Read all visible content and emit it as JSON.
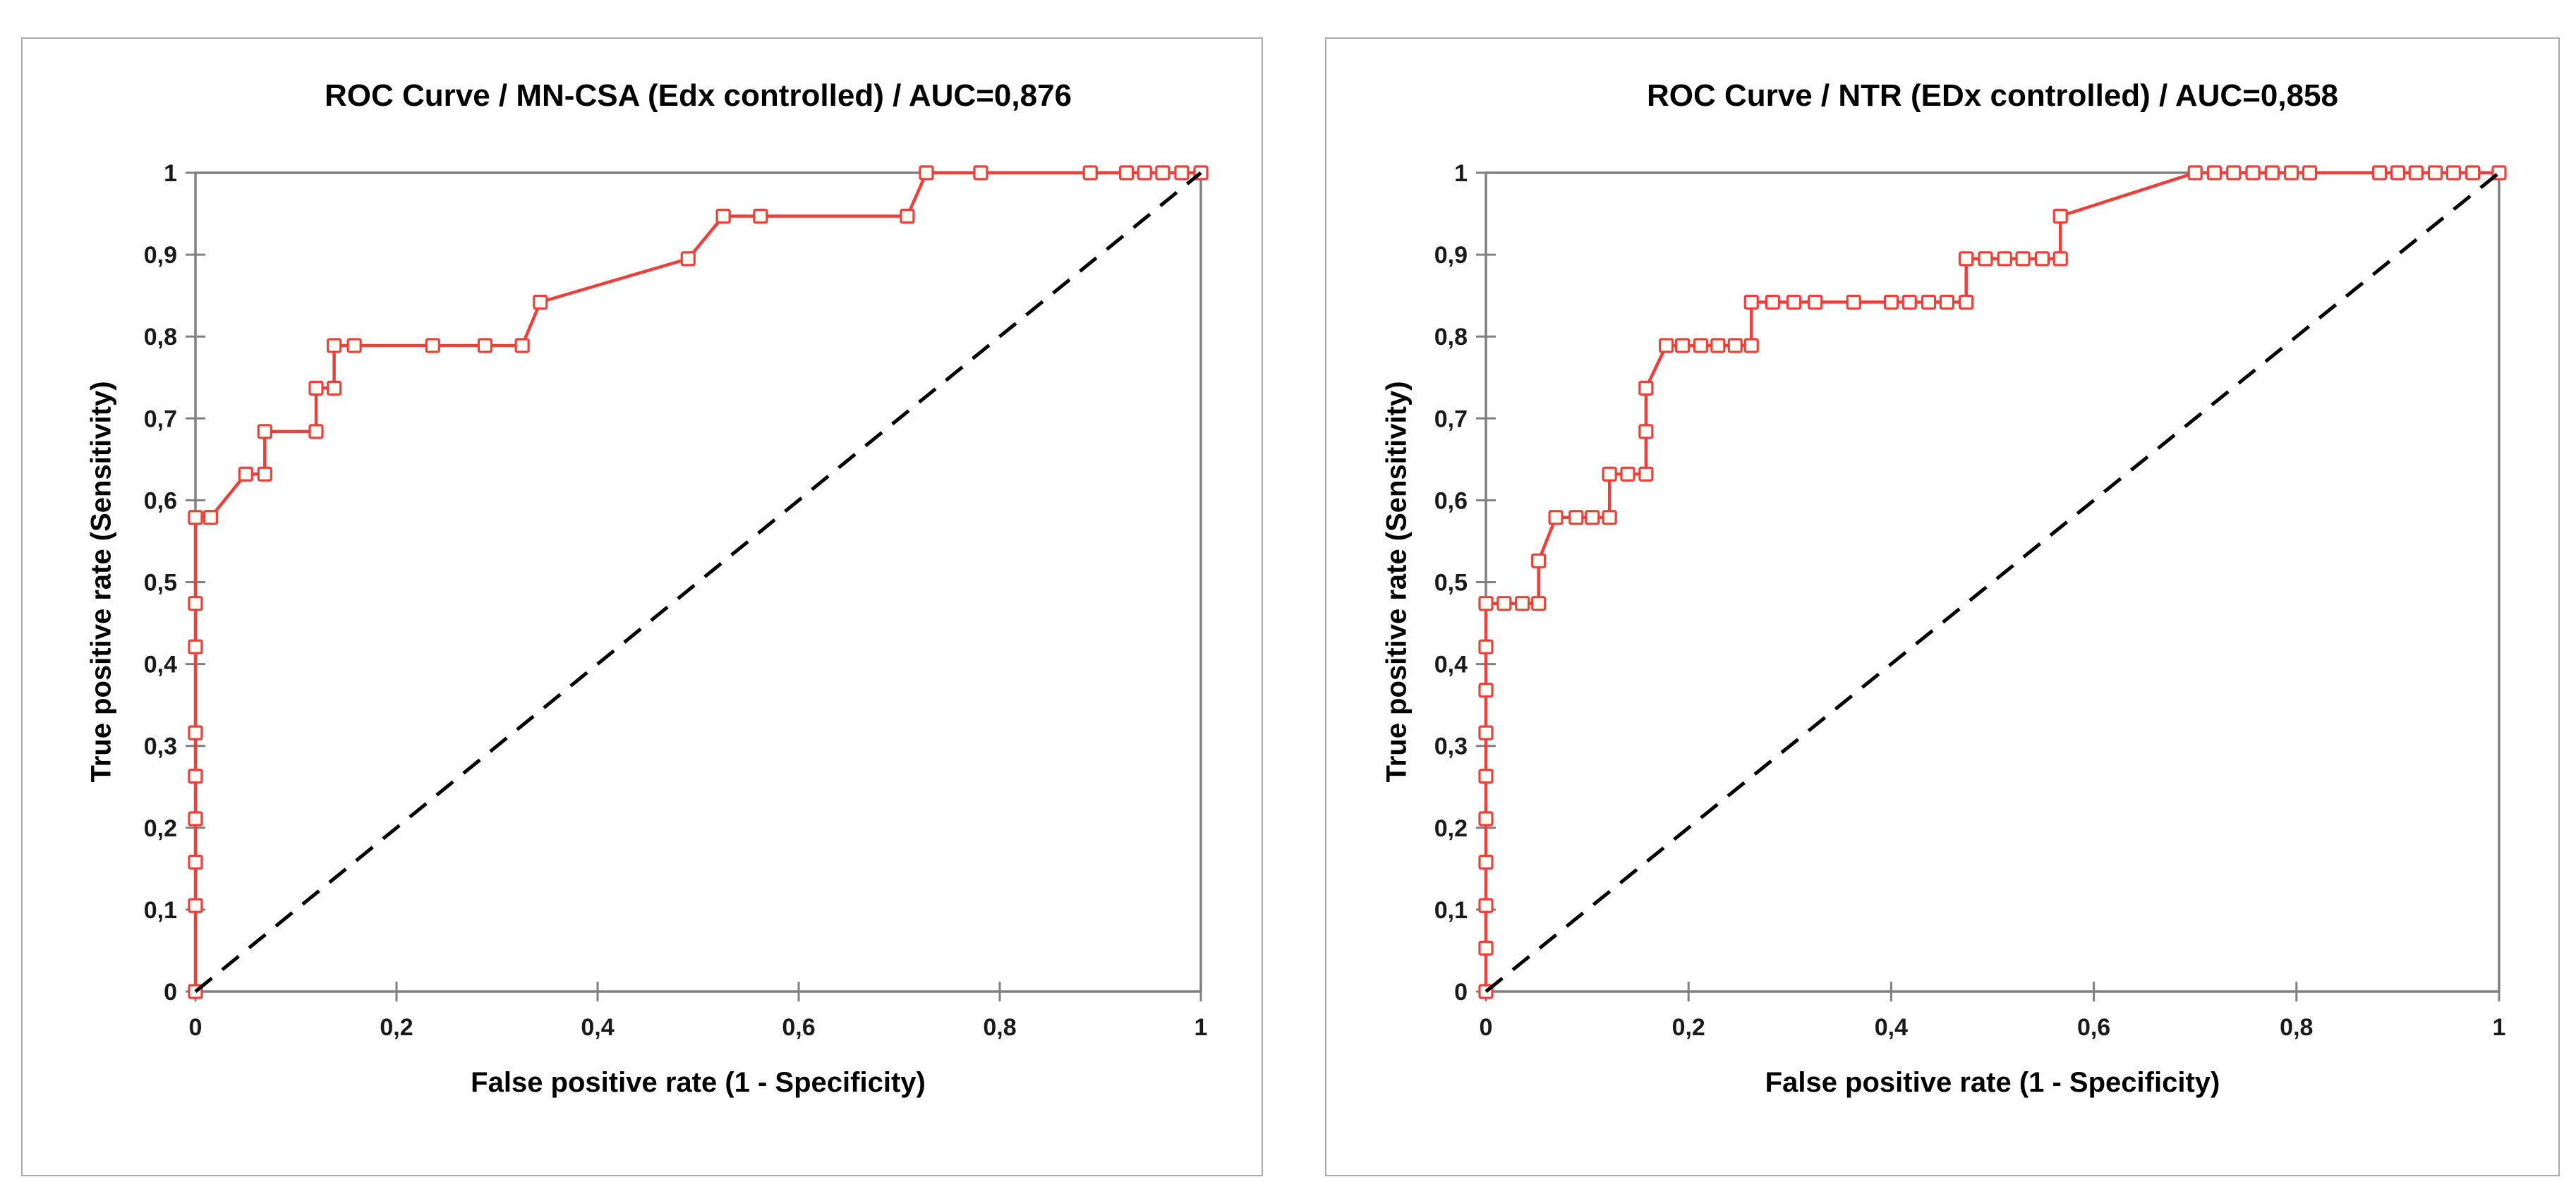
{
  "figure": {
    "background": "#ffffff",
    "panel_border_color": "#ababab",
    "axis_color": "#808080",
    "tick_text_color": "#1a1a1a",
    "title_text_color": "#000000",
    "curve_color": "#e9413c",
    "marker_fill": "#fffdf5",
    "diagonal_color": "#000000"
  },
  "chart_data": [
    {
      "type": "line",
      "title": "ROC Curve / MN-CSA (Edx controlled) / AUC=0,876",
      "auc": 0.876,
      "xlabel": "False positive rate (1 - Specificity)",
      "ylabel": "True positive rate (Sensitivity)",
      "xlim": [
        0,
        1
      ],
      "ylim": [
        0,
        1
      ],
      "x_tick_labels": [
        "0",
        "0,2",
        "0,4",
        "0,6",
        "0,8",
        "1"
      ],
      "y_tick_labels": [
        "0",
        "0,1",
        "0,2",
        "0,3",
        "0,4",
        "0,5",
        "0,6",
        "0,7",
        "0,8",
        "0,9",
        "1"
      ],
      "grid": false,
      "legend": false,
      "series": [
        {
          "name": "ROC curve (MN-CSA)",
          "style": "solid-square-markers",
          "color": "#e9413c",
          "points": [
            [
              0,
              0
            ],
            [
              0,
              0.105
            ],
            [
              0,
              0.158
            ],
            [
              0,
              0.211
            ],
            [
              0,
              0.263
            ],
            [
              0,
              0.316
            ],
            [
              0,
              0.421
            ],
            [
              0,
              0.474
            ],
            [
              0,
              0.579
            ],
            [
              0.015,
              0.579
            ],
            [
              0.05,
              0.632
            ],
            [
              0.069,
              0.632
            ],
            [
              0.069,
              0.684
            ],
            [
              0.12,
              0.684
            ],
            [
              0.12,
              0.737
            ],
            [
              0.138,
              0.737
            ],
            [
              0.138,
              0.789
            ],
            [
              0.158,
              0.789
            ],
            [
              0.236,
              0.789
            ],
            [
              0.288,
              0.789
            ],
            [
              0.325,
              0.789
            ],
            [
              0.343,
              0.842
            ],
            [
              0.49,
              0.895
            ],
            [
              0.525,
              0.947
            ],
            [
              0.562,
              0.947
            ],
            [
              0.708,
              0.947
            ],
            [
              0.727,
              1
            ],
            [
              0.781,
              1
            ],
            [
              0.89,
              1
            ],
            [
              0.926,
              1
            ],
            [
              0.944,
              1
            ],
            [
              0.962,
              1
            ],
            [
              0.981,
              1
            ],
            [
              1,
              1
            ]
          ]
        },
        {
          "name": "Chance diagonal",
          "style": "dashed-no-markers",
          "color": "#000000",
          "points": [
            [
              0,
              0
            ],
            [
              1,
              1
            ]
          ]
        }
      ]
    },
    {
      "type": "line",
      "title": "ROC Curve / NTR (EDx controlled) / AUC=0,858",
      "auc": 0.858,
      "xlabel": "False positive rate (1 - Specificity)",
      "ylabel": "True positive rate (Sensitivity)",
      "xlim": [
        0,
        1
      ],
      "ylim": [
        0,
        1
      ],
      "x_tick_labels": [
        "0",
        "0,2",
        "0,4",
        "0,6",
        "0,8",
        "1"
      ],
      "y_tick_labels": [
        "0",
        "0,1",
        "0,2",
        "0,3",
        "0,4",
        "0,5",
        "0,6",
        "0,7",
        "0,8",
        "0,9",
        "1"
      ],
      "grid": false,
      "legend": false,
      "series": [
        {
          "name": "ROC curve (NTR)",
          "style": "solid-square-markers",
          "color": "#e9413c",
          "points": [
            [
              0,
              0
            ],
            [
              0,
              0.053
            ],
            [
              0,
              0.105
            ],
            [
              0,
              0.158
            ],
            [
              0,
              0.211
            ],
            [
              0,
              0.263
            ],
            [
              0,
              0.316
            ],
            [
              0,
              0.368
            ],
            [
              0,
              0.421
            ],
            [
              0,
              0.474
            ],
            [
              0.018,
              0.474
            ],
            [
              0.036,
              0.474
            ],
            [
              0.052,
              0.474
            ],
            [
              0.052,
              0.526
            ],
            [
              0.069,
              0.579
            ],
            [
              0.089,
              0.579
            ],
            [
              0.105,
              0.579
            ],
            [
              0.122,
              0.579
            ],
            [
              0.122,
              0.632
            ],
            [
              0.14,
              0.632
            ],
            [
              0.158,
              0.632
            ],
            [
              0.158,
              0.684
            ],
            [
              0.158,
              0.737
            ],
            [
              0.178,
              0.789
            ],
            [
              0.194,
              0.789
            ],
            [
              0.212,
              0.789
            ],
            [
              0.229,
              0.789
            ],
            [
              0.246,
              0.789
            ],
            [
              0.262,
              0.789
            ],
            [
              0.262,
              0.842
            ],
            [
              0.283,
              0.842
            ],
            [
              0.304,
              0.842
            ],
            [
              0.325,
              0.842
            ],
            [
              0.363,
              0.842
            ],
            [
              0.4,
              0.842
            ],
            [
              0.418,
              0.842
            ],
            [
              0.437,
              0.842
            ],
            [
              0.455,
              0.842
            ],
            [
              0.474,
              0.842
            ],
            [
              0.474,
              0.895
            ],
            [
              0.493,
              0.895
            ],
            [
              0.512,
              0.895
            ],
            [
              0.53,
              0.895
            ],
            [
              0.549,
              0.895
            ],
            [
              0.567,
              0.895
            ],
            [
              0.567,
              0.947
            ],
            [
              0.7,
              1
            ],
            [
              0.719,
              1
            ],
            [
              0.738,
              1
            ],
            [
              0.757,
              1
            ],
            [
              0.776,
              1
            ],
            [
              0.795,
              1
            ],
            [
              0.813,
              1
            ],
            [
              0.882,
              1
            ],
            [
              0.9,
              1
            ],
            [
              0.918,
              1
            ],
            [
              0.937,
              1
            ],
            [
              0.955,
              1
            ],
            [
              0.974,
              1
            ],
            [
              1,
              1
            ]
          ]
        },
        {
          "name": "Chance diagonal",
          "style": "dashed-no-markers",
          "color": "#000000",
          "points": [
            [
              0,
              0
            ],
            [
              1,
              1
            ]
          ]
        }
      ]
    }
  ]
}
